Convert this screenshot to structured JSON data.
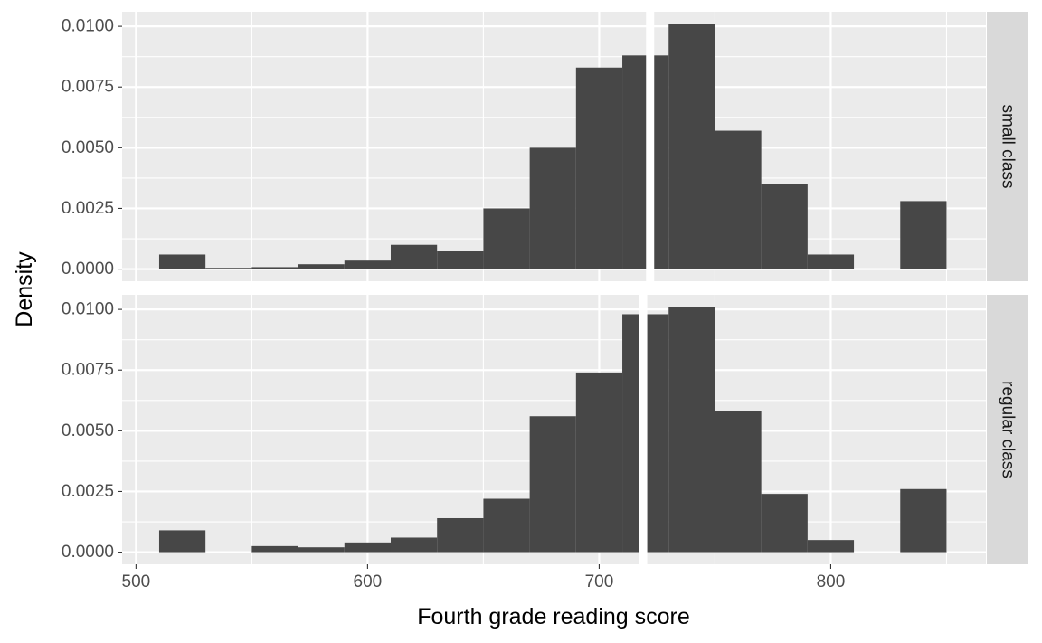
{
  "chart_data": {
    "type": "histogram",
    "xlabel": "Fourth grade reading score",
    "ylabel": "Density",
    "xlim": [
      494,
      867
    ],
    "ylim": [
      -0.0005,
      0.0106
    ],
    "x_ticks": [
      500,
      600,
      700,
      800
    ],
    "y_ticks": [
      0,
      0.0025,
      0.005,
      0.0075,
      0.01
    ],
    "y_tick_labels": [
      "0.0000",
      "0.0025",
      "0.0050",
      "0.0075",
      "0.0100"
    ],
    "bin_width": 20,
    "bin_starts": [
      510,
      530,
      550,
      570,
      590,
      610,
      630,
      650,
      670,
      690,
      710,
      730,
      750,
      770,
      790,
      810,
      830
    ],
    "vertical_line_color": "#ffffff",
    "bar_color": "#474747",
    "panel_background": "#EBEBEB",
    "strip_background": "#D9D9D9",
    "facets": [
      {
        "label": "small class",
        "vline_x": 722,
        "values": [
          0.0006,
          5e-05,
          8e-05,
          0.0002,
          0.00035,
          0.001,
          0.00075,
          0.0025,
          0.005,
          0.0083,
          0.0088,
          0.0101,
          0.0057,
          0.0035,
          0.0006,
          0.0,
          0.0028
        ]
      },
      {
        "label": "regular class",
        "vline_x": 719,
        "values": [
          0.0009,
          0.0,
          0.00025,
          0.0002,
          0.0004,
          0.0006,
          0.0014,
          0.0022,
          0.0056,
          0.0074,
          0.0098,
          0.0101,
          0.0058,
          0.0024,
          0.0005,
          0.0,
          0.0026
        ]
      }
    ]
  }
}
